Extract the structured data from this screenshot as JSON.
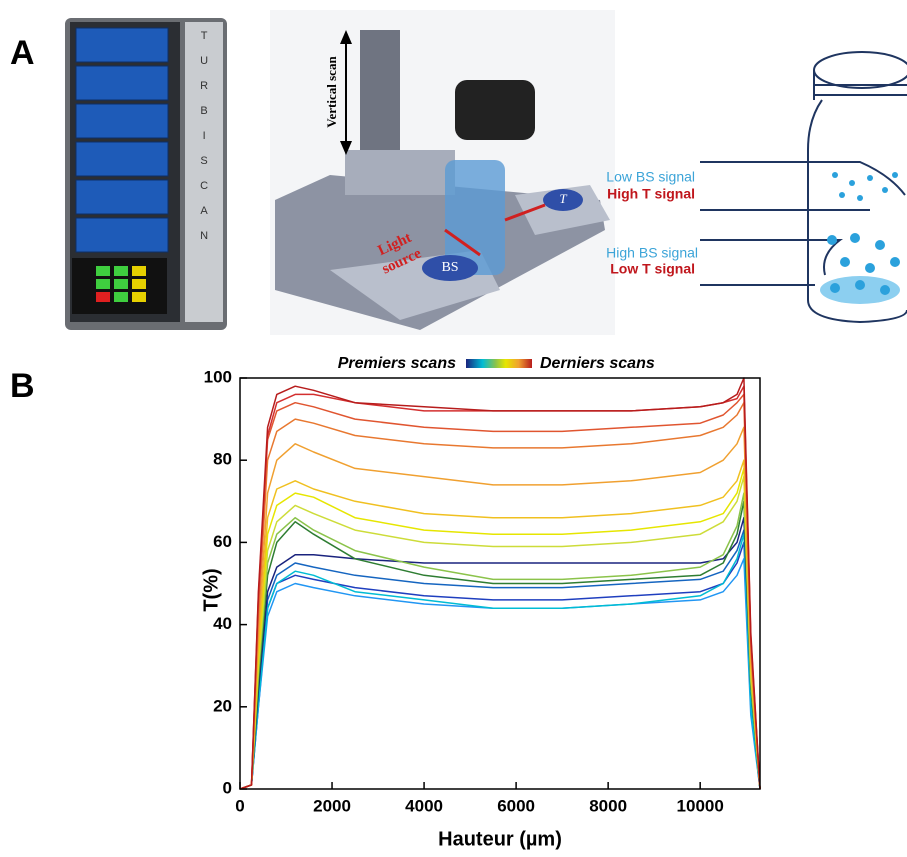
{
  "panel_a": {
    "label": "A",
    "device_text": "TURBISCAN",
    "vertical_scan": "Vertical scan",
    "light_source": [
      "Light",
      "source"
    ],
    "bs": "BS",
    "t": "T",
    "low_bs": "Low BS signal",
    "high_t": "High T signal",
    "high_bs": "High BS signal",
    "low_t": "Low T signal"
  },
  "panel_b_label": "B",
  "chart_data": {
    "type": "line",
    "legend_start": "Premiers scans",
    "legend_end": "Derniers scans",
    "x_label": "Hauteur (µm)",
    "y_label": "T(%)",
    "x": [
      0,
      250,
      400,
      600,
      800,
      1200,
      1600,
      2500,
      4000,
      5500,
      7000,
      8500,
      10000,
      10500,
      10800,
      10950,
      11100,
      11300
    ],
    "xlim": [
      0,
      11300
    ],
    "xticks": [
      0,
      2000,
      4000,
      6000,
      8000,
      10000
    ],
    "ylim": [
      0,
      100
    ],
    "yticks": [
      0,
      20,
      40,
      60,
      80,
      100
    ],
    "series": [
      {
        "color": "#1f3fbf",
        "values": [
          0,
          1,
          20,
          44,
          50,
          52,
          51,
          49,
          47,
          46,
          46,
          47,
          48,
          50,
          55,
          60,
          20,
          0
        ]
      },
      {
        "color": "#1565c0",
        "values": [
          0,
          1,
          22,
          46,
          52,
          55,
          54,
          52,
          50,
          49,
          49,
          50,
          51,
          53,
          58,
          63,
          22,
          0
        ]
      },
      {
        "color": "#2196f3",
        "values": [
          0,
          1,
          20,
          42,
          48,
          50,
          49,
          47,
          45,
          44,
          44,
          45,
          46,
          48,
          52,
          56,
          18,
          0
        ]
      },
      {
        "color": "#00bcd4",
        "values": [
          0,
          1,
          21,
          44,
          50,
          53,
          52,
          48,
          46,
          44,
          44,
          45,
          47,
          50,
          56,
          62,
          20,
          0
        ]
      },
      {
        "color": "#1a237e",
        "values": [
          0,
          1,
          24,
          48,
          54,
          57,
          57,
          56,
          55,
          55,
          55,
          55,
          55,
          56,
          60,
          66,
          25,
          0
        ]
      },
      {
        "color": "#2e7d32",
        "values": [
          0,
          1,
          26,
          52,
          60,
          65,
          62,
          56,
          52,
          50,
          50,
          51,
          52,
          55,
          62,
          70,
          25,
          0
        ]
      },
      {
        "color": "#8bc34a",
        "values": [
          0,
          1,
          28,
          55,
          62,
          66,
          63,
          58,
          54,
          51,
          51,
          52,
          54,
          57,
          64,
          72,
          26,
          0
        ]
      },
      {
        "color": "#cddc39",
        "values": [
          0,
          1,
          30,
          58,
          65,
          69,
          67,
          63,
          60,
          59,
          59,
          60,
          62,
          65,
          70,
          76,
          28,
          0
        ]
      },
      {
        "color": "#e6e600",
        "values": [
          0,
          1,
          32,
          62,
          69,
          72,
          71,
          66,
          63,
          62,
          62,
          63,
          65,
          67,
          72,
          78,
          30,
          0
        ]
      },
      {
        "color": "#f0c020",
        "values": [
          0,
          1,
          34,
          66,
          73,
          75,
          73,
          70,
          67,
          66,
          66,
          67,
          69,
          71,
          75,
          80,
          30,
          0
        ]
      },
      {
        "color": "#f0a030",
        "values": [
          0,
          1,
          38,
          72,
          80,
          84,
          82,
          78,
          76,
          74,
          74,
          75,
          77,
          80,
          84,
          88,
          32,
          0
        ]
      },
      {
        "color": "#e87830",
        "values": [
          0,
          1,
          42,
          80,
          87,
          90,
          89,
          86,
          84,
          83,
          83,
          84,
          86,
          88,
          91,
          94,
          35,
          0
        ]
      },
      {
        "color": "#e05530",
        "values": [
          0,
          1,
          45,
          85,
          92,
          94,
          93,
          90,
          88,
          87,
          87,
          88,
          89,
          91,
          94,
          96,
          36,
          0
        ]
      },
      {
        "color": "#d32f2f",
        "values": [
          0,
          1,
          47,
          86,
          94,
          96,
          96,
          94,
          92,
          92,
          92,
          92,
          93,
          94,
          95,
          98,
          37,
          0
        ]
      },
      {
        "color": "#b71c1c",
        "values": [
          0,
          1,
          48,
          88,
          96,
          98,
          97,
          94,
          93,
          92,
          92,
          92,
          93,
          94,
          96,
          100,
          38,
          0
        ]
      }
    ]
  }
}
